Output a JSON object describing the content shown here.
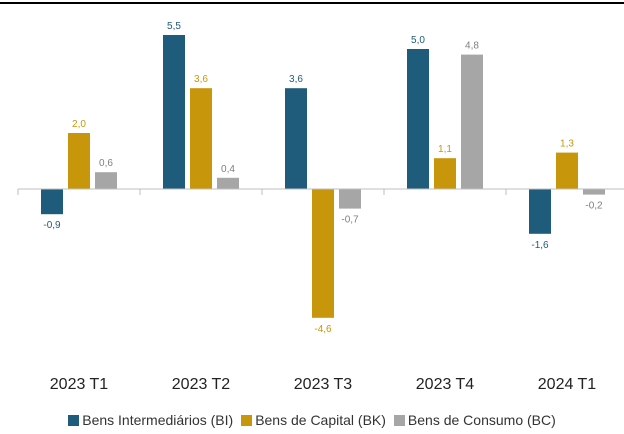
{
  "chart_data": {
    "type": "bar",
    "categories": [
      "2023 T1",
      "2023 T2",
      "2023 T3",
      "2023 T4",
      "2024 T1"
    ],
    "series": [
      {
        "name": "Bens Intermediários (BI)",
        "color": "#1f5b7a",
        "values": [
          -0.9,
          5.5,
          3.6,
          5.0,
          -1.6
        ],
        "value_labels": [
          "-0,9",
          "5,5",
          "3,6",
          "5,0",
          "-1,6"
        ]
      },
      {
        "name": "Bens de Capital (BK)",
        "color": "#c8960a",
        "values": [
          2.0,
          3.6,
          -4.6,
          1.1,
          1.3
        ],
        "value_labels": [
          "2,0",
          "3,6",
          "-4,6",
          "1,1",
          "1,3"
        ]
      },
      {
        "name": "Bens de Consumo (BC)",
        "color": "#a6a6a6",
        "values": [
          0.6,
          0.4,
          -0.7,
          4.8,
          -0.2
        ],
        "value_labels": [
          "0,6",
          "0,4",
          "-0,7",
          "4,8",
          "-0,2"
        ]
      }
    ],
    "legend": "bottom"
  }
}
